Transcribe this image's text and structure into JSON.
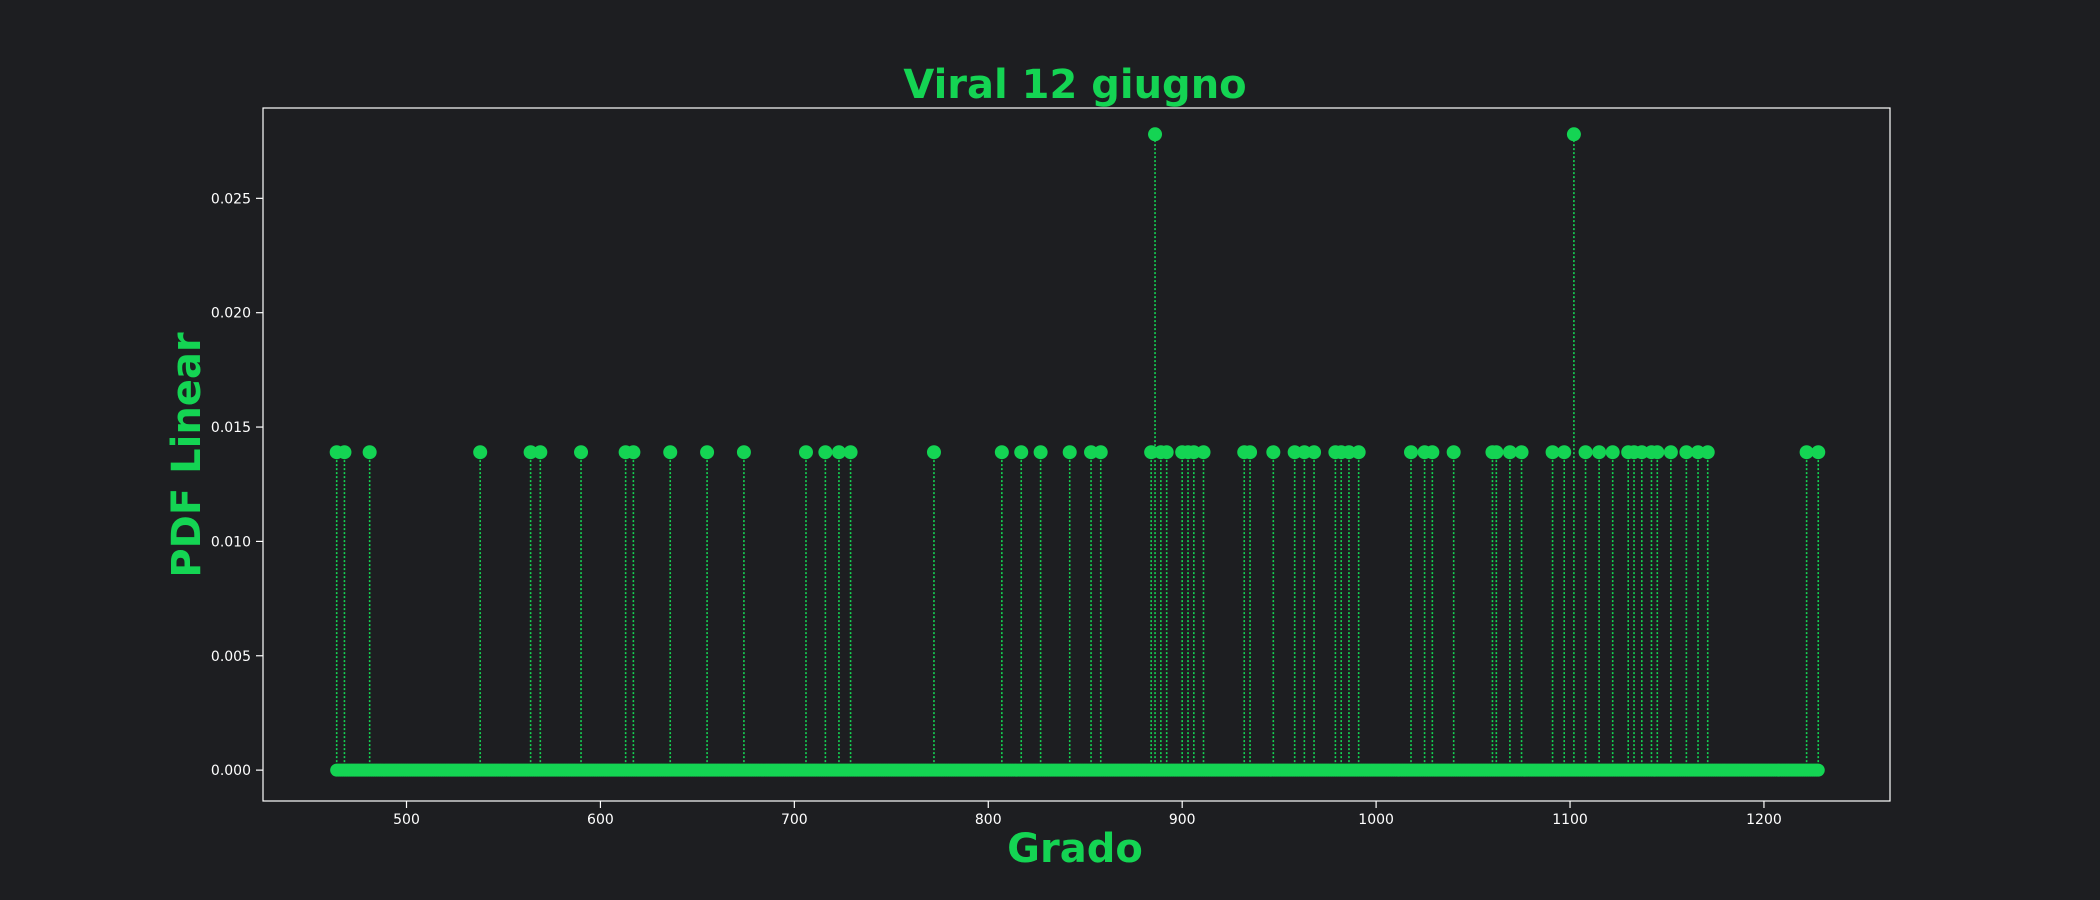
{
  "colors": {
    "background": "#1d1e21",
    "accent": "#14d453",
    "axes": "#ffffff"
  },
  "chart_data": {
    "type": "stem",
    "title": "Viral 12 giugno",
    "xlabel": "Grado",
    "ylabel": "PDF Linear",
    "xlim": [
      426,
      1265
    ],
    "ylim": [
      -0.00135,
      0.02895
    ],
    "xticks": [
      500,
      600,
      700,
      800,
      900,
      1000,
      1100,
      1200
    ],
    "xtick_labels": [
      "500",
      "600",
      "700",
      "800",
      "900",
      "1000",
      "1100",
      "1200"
    ],
    "yticks": [
      0.0,
      0.005,
      0.01,
      0.015,
      0.02,
      0.025
    ],
    "ytick_labels": [
      "0.000",
      "0.005",
      "0.010",
      "0.015",
      "0.020",
      "0.025"
    ],
    "baseline_x_range": [
      464,
      1228
    ],
    "baseline_value": 0.0,
    "marker_style": "circle",
    "stem_style": "dotted",
    "grid": false,
    "points": [
      {
        "x": 464,
        "y": 0.0139
      },
      {
        "x": 468,
        "y": 0.0139
      },
      {
        "x": 481,
        "y": 0.0139
      },
      {
        "x": 538,
        "y": 0.0139
      },
      {
        "x": 564,
        "y": 0.0139
      },
      {
        "x": 569,
        "y": 0.0139
      },
      {
        "x": 590,
        "y": 0.0139
      },
      {
        "x": 613,
        "y": 0.0139
      },
      {
        "x": 617,
        "y": 0.0139
      },
      {
        "x": 636,
        "y": 0.0139
      },
      {
        "x": 655,
        "y": 0.0139
      },
      {
        "x": 674,
        "y": 0.0139
      },
      {
        "x": 706,
        "y": 0.0139
      },
      {
        "x": 716,
        "y": 0.0139
      },
      {
        "x": 723,
        "y": 0.0139
      },
      {
        "x": 729,
        "y": 0.0139
      },
      {
        "x": 772,
        "y": 0.0139
      },
      {
        "x": 807,
        "y": 0.0139
      },
      {
        "x": 817,
        "y": 0.0139
      },
      {
        "x": 827,
        "y": 0.0139
      },
      {
        "x": 842,
        "y": 0.0139
      },
      {
        "x": 853,
        "y": 0.0139
      },
      {
        "x": 858,
        "y": 0.0139
      },
      {
        "x": 884,
        "y": 0.0139
      },
      {
        "x": 886,
        "y": 0.0278
      },
      {
        "x": 889,
        "y": 0.0139
      },
      {
        "x": 892,
        "y": 0.0139
      },
      {
        "x": 900,
        "y": 0.0139
      },
      {
        "x": 903,
        "y": 0.0139
      },
      {
        "x": 906,
        "y": 0.0139
      },
      {
        "x": 911,
        "y": 0.0139
      },
      {
        "x": 932,
        "y": 0.0139
      },
      {
        "x": 935,
        "y": 0.0139
      },
      {
        "x": 947,
        "y": 0.0139
      },
      {
        "x": 958,
        "y": 0.0139
      },
      {
        "x": 963,
        "y": 0.0139
      },
      {
        "x": 968,
        "y": 0.0139
      },
      {
        "x": 979,
        "y": 0.0139
      },
      {
        "x": 982,
        "y": 0.0139
      },
      {
        "x": 986,
        "y": 0.0139
      },
      {
        "x": 991,
        "y": 0.0139
      },
      {
        "x": 1018,
        "y": 0.0139
      },
      {
        "x": 1025,
        "y": 0.0139
      },
      {
        "x": 1029,
        "y": 0.0139
      },
      {
        "x": 1040,
        "y": 0.0139
      },
      {
        "x": 1060,
        "y": 0.0139
      },
      {
        "x": 1062,
        "y": 0.0139
      },
      {
        "x": 1069,
        "y": 0.0139
      },
      {
        "x": 1075,
        "y": 0.0139
      },
      {
        "x": 1091,
        "y": 0.0139
      },
      {
        "x": 1097,
        "y": 0.0139
      },
      {
        "x": 1102,
        "y": 0.0278
      },
      {
        "x": 1108,
        "y": 0.0139
      },
      {
        "x": 1115,
        "y": 0.0139
      },
      {
        "x": 1122,
        "y": 0.0139
      },
      {
        "x": 1130,
        "y": 0.0139
      },
      {
        "x": 1133,
        "y": 0.0139
      },
      {
        "x": 1137,
        "y": 0.0139
      },
      {
        "x": 1142,
        "y": 0.0139
      },
      {
        "x": 1145,
        "y": 0.0139
      },
      {
        "x": 1152,
        "y": 0.0139
      },
      {
        "x": 1160,
        "y": 0.0139
      },
      {
        "x": 1166,
        "y": 0.0139
      },
      {
        "x": 1171,
        "y": 0.0139
      },
      {
        "x": 1222,
        "y": 0.0139
      },
      {
        "x": 1228,
        "y": 0.0139
      }
    ]
  }
}
